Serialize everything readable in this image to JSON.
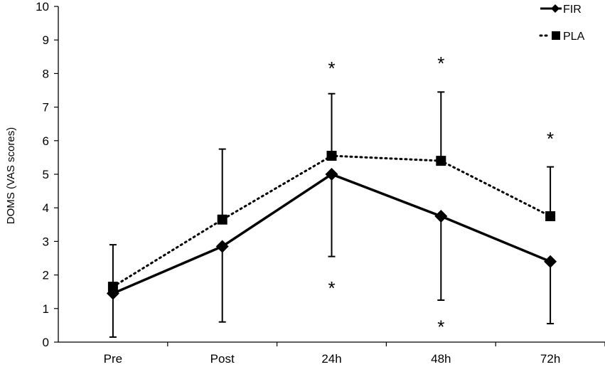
{
  "chart_data": {
    "type": "line",
    "categories": [
      "Pre",
      "Post",
      "24h",
      "48h",
      "72h"
    ],
    "ylabel": "DOMS (VAS scores)",
    "xlabel": "",
    "ylim": [
      0,
      10
    ],
    "yticks": [
      0,
      1,
      2,
      3,
      4,
      5,
      6,
      7,
      8,
      9,
      10
    ],
    "grid": false,
    "legend_position": "top-right",
    "series": [
      {
        "name": "FIR",
        "style": "solid",
        "marker": "diamond",
        "values": [
          1.45,
          2.85,
          5.0,
          3.75,
          2.4
        ],
        "error_direction": "down",
        "error_to": [
          0.15,
          0.6,
          2.55,
          1.25,
          0.55
        ]
      },
      {
        "name": "PLA",
        "style": "dotted",
        "marker": "square",
        "values": [
          1.65,
          3.65,
          5.55,
          5.4,
          3.75
        ],
        "error_direction": "up",
        "error_to": [
          2.9,
          5.75,
          7.4,
          7.45,
          5.22
        ]
      }
    ],
    "annotations": [
      {
        "text": "*",
        "category": "24h",
        "y": 8.2
      },
      {
        "text": "*",
        "category": "48h",
        "y": 8.35
      },
      {
        "text": "*",
        "category": "72h",
        "y": 6.1
      },
      {
        "text": "*",
        "category": "24h",
        "y": 1.65
      },
      {
        "text": "*",
        "category": "48h",
        "y": 0.5
      }
    ],
    "colors": {
      "axis": "#000000",
      "series": "#000000"
    }
  }
}
